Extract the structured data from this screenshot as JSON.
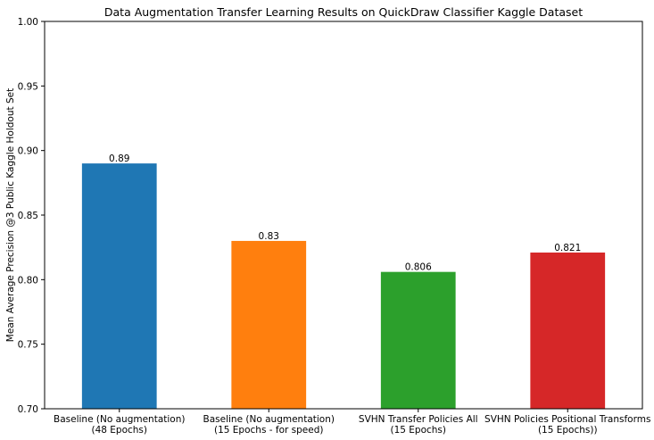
{
  "chart_data": {
    "type": "bar",
    "title": "Data Augmentation Transfer Learning Results on QuickDraw Classifier Kaggle Dataset",
    "xlabel": "",
    "ylabel": "Mean Average Precision @3 Public Kaggle Holdout Set",
    "ylim": [
      0.7,
      1.0
    ],
    "yticks": [
      "0.70",
      "0.75",
      "0.80",
      "0.85",
      "0.90",
      "0.95",
      "1.00"
    ],
    "categories": [
      [
        "Baseline (No augmentation)",
        "(48 Epochs)"
      ],
      [
        "Baseline (No augmentation)",
        "(15 Epochs - for speed)"
      ],
      [
        "SVHN Transfer Policies All",
        "(15 Epochs)"
      ],
      [
        "SVHN Policies Positional Transforms",
        "(15 Epochs))"
      ]
    ],
    "values": [
      0.89,
      0.83,
      0.806,
      0.821
    ],
    "value_labels": [
      "0.89",
      "0.83",
      "0.806",
      "0.821"
    ],
    "colors": [
      "#1f77b4",
      "#ff7f0e",
      "#2ca02c",
      "#d62728"
    ],
    "grid": false,
    "legend": "none"
  }
}
